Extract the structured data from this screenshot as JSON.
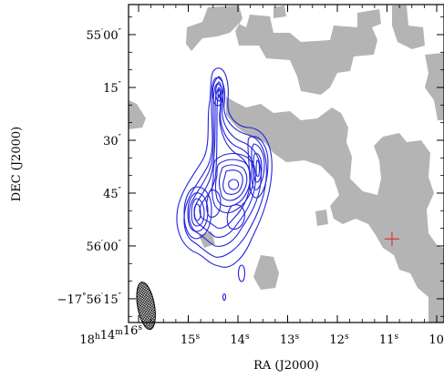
{
  "chart_data": {
    "type": "contour",
    "xlabel": "RA (J2000)",
    "ylabel": "DEC (J2000)",
    "x_ticks": [
      {
        "value": 16,
        "h": "18",
        "m": "14",
        "s": "16"
      },
      {
        "value": 15,
        "s": "15"
      },
      {
        "value": 14,
        "s": "14"
      },
      {
        "value": 13,
        "s": "13"
      },
      {
        "value": 12,
        "s": "12"
      },
      {
        "value": 11,
        "s": "11"
      },
      {
        "value": 10,
        "s": "10"
      }
    ],
    "y_ticks": [
      {
        "value": 0,
        "deg": "",
        "m": "55",
        "s": "00"
      },
      {
        "value": 15,
        "deg": "",
        "m": "",
        "s": "15"
      },
      {
        "value": 30,
        "deg": "",
        "m": "",
        "s": "30"
      },
      {
        "value": 45,
        "deg": "",
        "m": "",
        "s": "45"
      },
      {
        "value": 60,
        "deg": "",
        "m": "56",
        "s": "00"
      },
      {
        "value": 75,
        "deg": "−17",
        "m": "56",
        "s": "15"
      }
    ],
    "xlim": [
      16.3,
      9.9
    ],
    "ylim_arcsec_from_55m00s": [
      -8,
      85
    ],
    "grid": false,
    "legend": "none",
    "contour_color": "#2222dd",
    "mask_color": "#b4b4b4",
    "marker": {
      "shape": "plus",
      "color": "#dd2222",
      "ra_s": 10.9,
      "dec_offset": 58
    },
    "beam": {
      "ra_s": 15.85,
      "dec_offset": 77,
      "major_arcsec": 8,
      "minor_arcsec": 4
    }
  }
}
